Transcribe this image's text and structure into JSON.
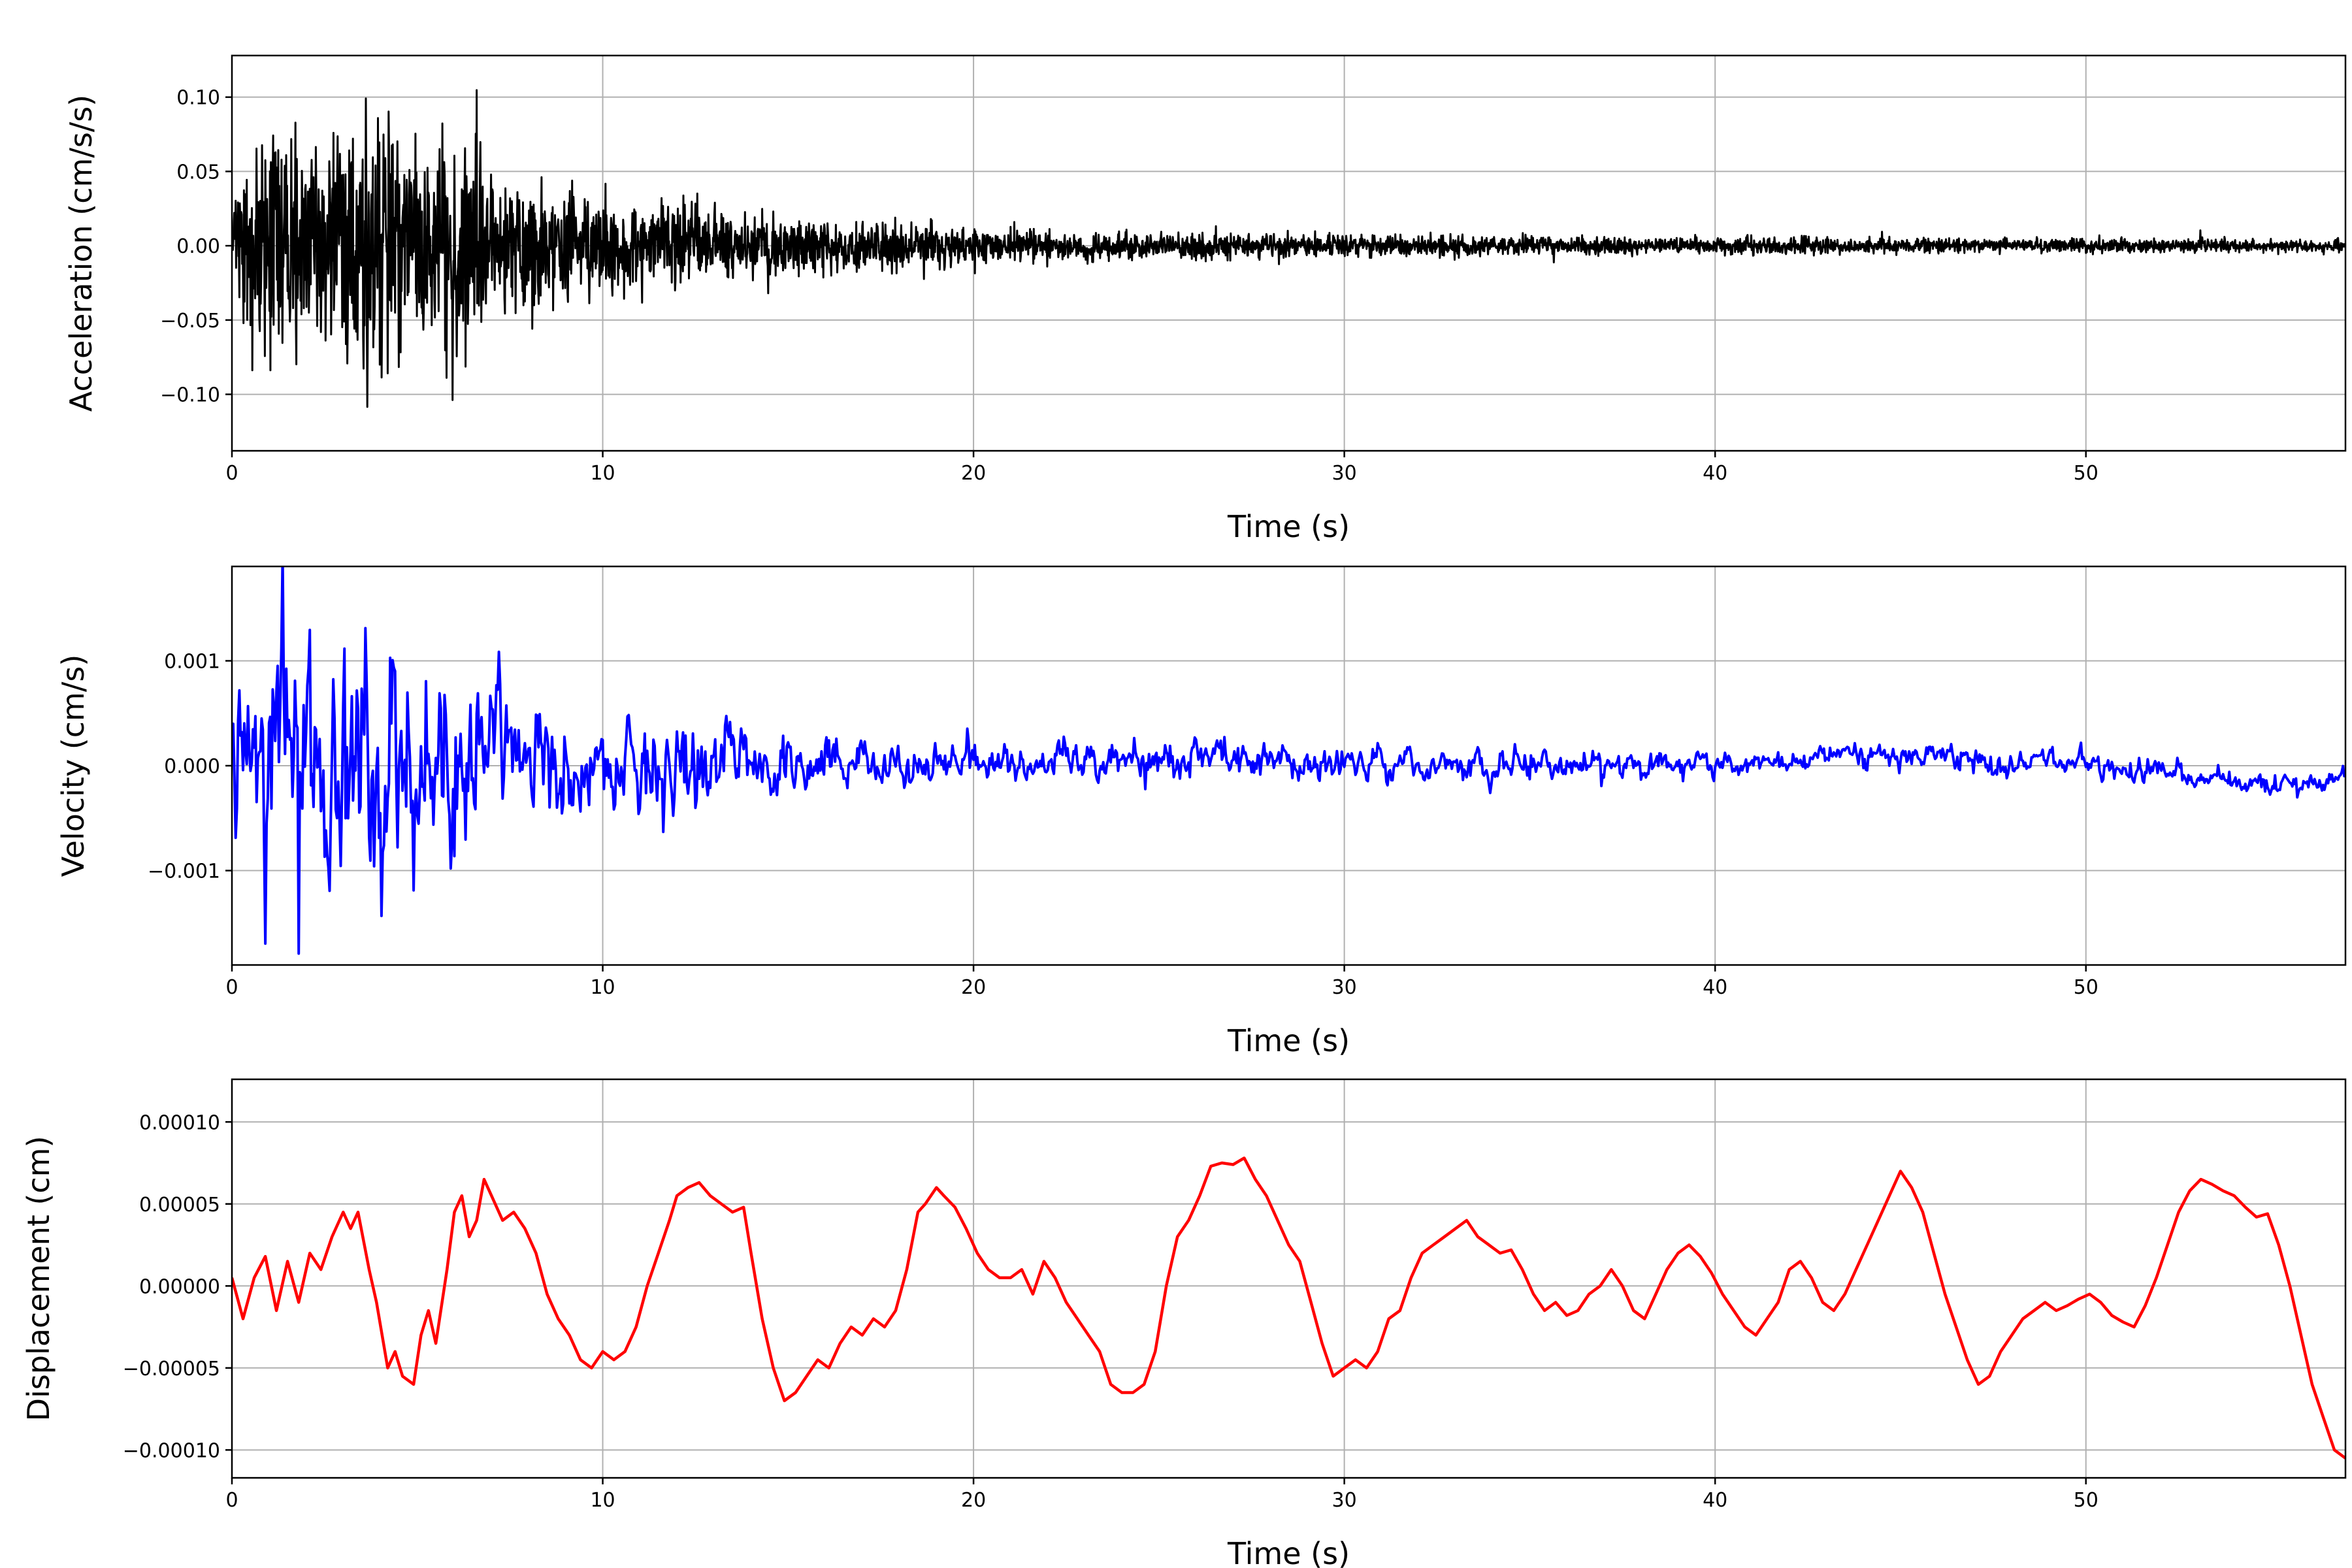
{
  "figure": {
    "background": "#ffffff",
    "grid_color": "#b0b0b0",
    "spine_color": "#000000",
    "tick_color": "#000000"
  },
  "chart_data": [
    {
      "type": "line",
      "id": "acceleration",
      "xlabel": "Time (s)",
      "ylabel": "Acceleration (cm/s/s)",
      "line_color": "#000000",
      "line_width": 3,
      "xlim": [
        0,
        57
      ],
      "ylim": [
        -0.138,
        0.128
      ],
      "xticks": [
        0,
        10,
        20,
        30,
        40,
        50
      ],
      "xtick_labels": [
        "0",
        "10",
        "20",
        "30",
        "40",
        "50"
      ],
      "yticks": [
        -0.1,
        -0.05,
        0.0,
        0.05,
        0.1
      ],
      "ytick_labels": [
        "−0.10",
        "−0.05",
        "0.00",
        "0.05",
        "0.10"
      ],
      "grid": true,
      "legend": null,
      "signal": {
        "kind": "noise_envelope",
        "sample_rate": 80,
        "seed": 42,
        "peak": 0.095,
        "trough": -0.12,
        "envelope_t": [
          0,
          0.3,
          0.8,
          1.2,
          1.6,
          2.0,
          2.5,
          3.0,
          3.5,
          4.0,
          4.4,
          4.8,
          5.3,
          5.8,
          6.3,
          6.8,
          7.2,
          7.8,
          8.5,
          9.2,
          10,
          11,
          12,
          13,
          14,
          15,
          16,
          17,
          18,
          19,
          20,
          22,
          24,
          26,
          28,
          30,
          33,
          36,
          40,
          44,
          48,
          52,
          57
        ],
        "envelope_y": [
          0.03,
          0.055,
          0.09,
          0.115,
          0.085,
          0.075,
          0.07,
          0.08,
          0.088,
          0.095,
          0.085,
          0.07,
          0.062,
          0.075,
          0.085,
          0.06,
          0.05,
          0.045,
          0.042,
          0.038,
          0.035,
          0.032,
          0.03,
          0.026,
          0.022,
          0.02,
          0.018,
          0.016,
          0.015,
          0.014,
          0.013,
          0.011,
          0.01,
          0.009,
          0.0085,
          0.008,
          0.007,
          0.0065,
          0.006,
          0.0055,
          0.005,
          0.005,
          0.0045
        ]
      }
    },
    {
      "type": "line",
      "id": "velocity",
      "xlabel": "Time (s)",
      "ylabel": "Velocity (cm/s)",
      "line_color": "#0000ff",
      "line_width": 4,
      "xlim": [
        0,
        57
      ],
      "ylim": [
        -0.0019,
        0.0019
      ],
      "xticks": [
        0,
        10,
        20,
        30,
        40,
        50
      ],
      "xtick_labels": [
        "0",
        "10",
        "20",
        "30",
        "40",
        "50"
      ],
      "yticks": [
        -0.001,
        0.0,
        0.001
      ],
      "ytick_labels": [
        "−0.001",
        "0.000",
        "0.001"
      ],
      "grid": true,
      "legend": null,
      "signal": {
        "kind": "noise_envelope",
        "sample_rate": 30,
        "seed": 7,
        "ar": 0.5,
        "peak": 0.0016,
        "trough": -0.0016,
        "envelope_t": [
          0,
          0.5,
          1.0,
          1.5,
          2.0,
          2.5,
          3.0,
          3.5,
          3.9,
          4.3,
          4.7,
          5.2,
          5.7,
          6.2,
          6.7,
          7.2,
          7.8,
          8.5,
          9.2,
          10,
          11,
          11.6,
          12.2,
          13,
          14,
          15,
          16,
          18,
          20,
          22,
          24,
          26,
          28,
          30,
          34,
          38,
          42,
          46,
          50,
          54,
          57
        ],
        "envelope_y": [
          0.0007,
          0.0011,
          0.0014,
          0.0016,
          0.0013,
          0.0011,
          0.0012,
          0.0013,
          0.0016,
          0.0012,
          0.0011,
          0.001,
          0.0009,
          0.0011,
          0.001,
          0.0009,
          0.0007,
          0.0006,
          0.00055,
          0.0005,
          0.00042,
          0.00065,
          0.0005,
          0.0004,
          0.0003,
          0.00027,
          0.00025,
          0.00022,
          0.0002,
          0.00022,
          0.00018,
          0.0002,
          0.00018,
          0.00016,
          0.00015,
          0.00014,
          0.00013,
          0.00013,
          0.00012,
          0.00012,
          0.00012
        ],
        "baseline_t": [
          0,
          10,
          20,
          24,
          26,
          28,
          30,
          35,
          40,
          43,
          44.5,
          46,
          48,
          50,
          52,
          53.5,
          55,
          56,
          57
        ],
        "baseline_y": [
          0,
          0,
          2e-05,
          5e-05,
          8e-05,
          6e-05,
          2e-05,
          0,
          2e-05,
          6e-05,
          0.00015,
          6e-05,
          0,
          2e-05,
          -5e-05,
          -0.00012,
          -0.00018,
          -0.00014,
          -0.00012
        ]
      }
    },
    {
      "type": "line",
      "id": "displacement",
      "xlabel": "Time (s)",
      "ylabel": "Displacement (cm)",
      "line_color": "#ff0000",
      "line_width": 4.5,
      "xlim": [
        0,
        57
      ],
      "ylim": [
        -0.000117,
        0.000126
      ],
      "xticks": [
        0,
        10,
        20,
        30,
        40,
        50
      ],
      "xtick_labels": [
        "0",
        "10",
        "20",
        "30",
        "40",
        "50"
      ],
      "yticks": [
        -0.0001,
        -5e-05,
        0.0,
        5e-05,
        0.0001
      ],
      "ytick_labels": [
        "−0.00010",
        "−0.00005",
        "0.00000",
        "0.00005",
        "0.00010"
      ],
      "grid": true,
      "legend": null,
      "signal": {
        "kind": "points",
        "y_scale": 1e-05,
        "points": [
          [
            0,
            0.5
          ],
          [
            0.3,
            -2
          ],
          [
            0.6,
            0.5
          ],
          [
            0.9,
            1.8
          ],
          [
            1.2,
            -1.5
          ],
          [
            1.5,
            1.5
          ],
          [
            1.8,
            -1
          ],
          [
            2.1,
            2
          ],
          [
            2.4,
            1
          ],
          [
            2.7,
            3
          ],
          [
            3,
            4.5
          ],
          [
            3.2,
            3.5
          ],
          [
            3.4,
            4.5
          ],
          [
            3.7,
            1
          ],
          [
            3.9,
            -1
          ],
          [
            4.2,
            -5
          ],
          [
            4.4,
            -4
          ],
          [
            4.6,
            -5.5
          ],
          [
            4.9,
            -6
          ],
          [
            5.1,
            -3
          ],
          [
            5.3,
            -1.5
          ],
          [
            5.5,
            -3.5
          ],
          [
            5.8,
            1
          ],
          [
            6,
            4.5
          ],
          [
            6.2,
            5.5
          ],
          [
            6.4,
            3
          ],
          [
            6.6,
            4
          ],
          [
            6.8,
            6.5
          ],
          [
            7,
            5.5
          ],
          [
            7.3,
            4
          ],
          [
            7.6,
            4.5
          ],
          [
            7.9,
            3.5
          ],
          [
            8.2,
            2
          ],
          [
            8.5,
            -0.5
          ],
          [
            8.8,
            -2
          ],
          [
            9.1,
            -3
          ],
          [
            9.4,
            -4.5
          ],
          [
            9.7,
            -5
          ],
          [
            10,
            -4
          ],
          [
            10.3,
            -4.5
          ],
          [
            10.6,
            -4
          ],
          [
            10.9,
            -2.5
          ],
          [
            11.2,
            0
          ],
          [
            11.5,
            2
          ],
          [
            11.8,
            4
          ],
          [
            12,
            5.5
          ],
          [
            12.3,
            6
          ],
          [
            12.6,
            6.3
          ],
          [
            12.9,
            5.5
          ],
          [
            13.2,
            5
          ],
          [
            13.5,
            4.5
          ],
          [
            13.8,
            4.8
          ],
          [
            14,
            2
          ],
          [
            14.3,
            -2
          ],
          [
            14.6,
            -5
          ],
          [
            14.9,
            -7
          ],
          [
            15.2,
            -6.5
          ],
          [
            15.5,
            -5.5
          ],
          [
            15.8,
            -4.5
          ],
          [
            16.1,
            -5
          ],
          [
            16.4,
            -3.5
          ],
          [
            16.7,
            -2.5
          ],
          [
            17,
            -3
          ],
          [
            17.3,
            -2
          ],
          [
            17.6,
            -2.5
          ],
          [
            17.9,
            -1.5
          ],
          [
            18.2,
            1
          ],
          [
            18.5,
            4.5
          ],
          [
            18.7,
            5
          ],
          [
            19,
            6
          ],
          [
            19.2,
            5.5
          ],
          [
            19.5,
            4.8
          ],
          [
            19.8,
            3.5
          ],
          [
            20.1,
            2
          ],
          [
            20.4,
            1
          ],
          [
            20.7,
            0.5
          ],
          [
            21,
            0.5
          ],
          [
            21.3,
            1
          ],
          [
            21.6,
            -0.5
          ],
          [
            21.9,
            1.5
          ],
          [
            22.2,
            0.5
          ],
          [
            22.5,
            -1
          ],
          [
            22.8,
            -2
          ],
          [
            23.1,
            -3
          ],
          [
            23.4,
            -4
          ],
          [
            23.7,
            -6
          ],
          [
            24,
            -6.5
          ],
          [
            24.3,
            -6.5
          ],
          [
            24.6,
            -6
          ],
          [
            24.9,
            -4
          ],
          [
            25.2,
            0
          ],
          [
            25.5,
            3
          ],
          [
            25.8,
            4
          ],
          [
            26.1,
            5.5
          ],
          [
            26.4,
            7.3
          ],
          [
            26.7,
            7.5
          ],
          [
            27,
            7.4
          ],
          [
            27.3,
            7.8
          ],
          [
            27.6,
            6.5
          ],
          [
            27.9,
            5.5
          ],
          [
            28.2,
            4
          ],
          [
            28.5,
            2.5
          ],
          [
            28.8,
            1.5
          ],
          [
            29.1,
            -1
          ],
          [
            29.4,
            -3.5
          ],
          [
            29.7,
            -5.5
          ],
          [
            30,
            -5
          ],
          [
            30.3,
            -4.5
          ],
          [
            30.6,
            -5
          ],
          [
            30.9,
            -4
          ],
          [
            31.2,
            -2
          ],
          [
            31.5,
            -1.5
          ],
          [
            31.8,
            0.5
          ],
          [
            32.1,
            2
          ],
          [
            32.4,
            2.5
          ],
          [
            32.7,
            3
          ],
          [
            33,
            3.5
          ],
          [
            33.3,
            4
          ],
          [
            33.6,
            3
          ],
          [
            33.9,
            2.5
          ],
          [
            34.2,
            2
          ],
          [
            34.5,
            2.2
          ],
          [
            34.8,
            1
          ],
          [
            35.1,
            -0.5
          ],
          [
            35.4,
            -1.5
          ],
          [
            35.7,
            -1
          ],
          [
            36,
            -1.8
          ],
          [
            36.3,
            -1.5
          ],
          [
            36.6,
            -0.5
          ],
          [
            36.9,
            0
          ],
          [
            37.2,
            1
          ],
          [
            37.5,
            0
          ],
          [
            37.8,
            -1.5
          ],
          [
            38.1,
            -2
          ],
          [
            38.4,
            -0.5
          ],
          [
            38.7,
            1
          ],
          [
            39,
            2
          ],
          [
            39.3,
            2.5
          ],
          [
            39.6,
            1.8
          ],
          [
            39.9,
            0.8
          ],
          [
            40.2,
            -0.5
          ],
          [
            40.5,
            -1.5
          ],
          [
            40.8,
            -2.5
          ],
          [
            41.1,
            -3
          ],
          [
            41.4,
            -2
          ],
          [
            41.7,
            -1
          ],
          [
            42,
            1
          ],
          [
            42.3,
            1.5
          ],
          [
            42.6,
            0.5
          ],
          [
            42.9,
            -1
          ],
          [
            43.2,
            -1.5
          ],
          [
            43.5,
            -0.5
          ],
          [
            43.8,
            1
          ],
          [
            44.1,
            2.5
          ],
          [
            44.4,
            4
          ],
          [
            44.7,
            5.5
          ],
          [
            45,
            7
          ],
          [
            45.3,
            6
          ],
          [
            45.6,
            4.5
          ],
          [
            45.9,
            2
          ],
          [
            46.2,
            -0.5
          ],
          [
            46.5,
            -2.5
          ],
          [
            46.8,
            -4.5
          ],
          [
            47.1,
            -6
          ],
          [
            47.4,
            -5.5
          ],
          [
            47.7,
            -4
          ],
          [
            48,
            -3
          ],
          [
            48.3,
            -2
          ],
          [
            48.6,
            -1.5
          ],
          [
            48.9,
            -1
          ],
          [
            49.2,
            -1.5
          ],
          [
            49.5,
            -1.2
          ],
          [
            49.8,
            -0.8
          ],
          [
            50.1,
            -0.5
          ],
          [
            50.4,
            -1
          ],
          [
            50.7,
            -1.8
          ],
          [
            51,
            -2.2
          ],
          [
            51.3,
            -2.5
          ],
          [
            51.6,
            -1.2
          ],
          [
            51.9,
            0.5
          ],
          [
            52.2,
            2.5
          ],
          [
            52.5,
            4.5
          ],
          [
            52.8,
            5.8
          ],
          [
            53.1,
            6.5
          ],
          [
            53.4,
            6.2
          ],
          [
            53.7,
            5.8
          ],
          [
            54,
            5.5
          ],
          [
            54.3,
            4.8
          ],
          [
            54.6,
            4.2
          ],
          [
            54.9,
            4.4
          ],
          [
            55.2,
            2.5
          ],
          [
            55.5,
            0
          ],
          [
            55.8,
            -3
          ],
          [
            56.1,
            -6
          ],
          [
            56.4,
            -8
          ],
          [
            56.7,
            -10
          ],
          [
            57,
            -10.5
          ]
        ]
      }
    }
  ]
}
